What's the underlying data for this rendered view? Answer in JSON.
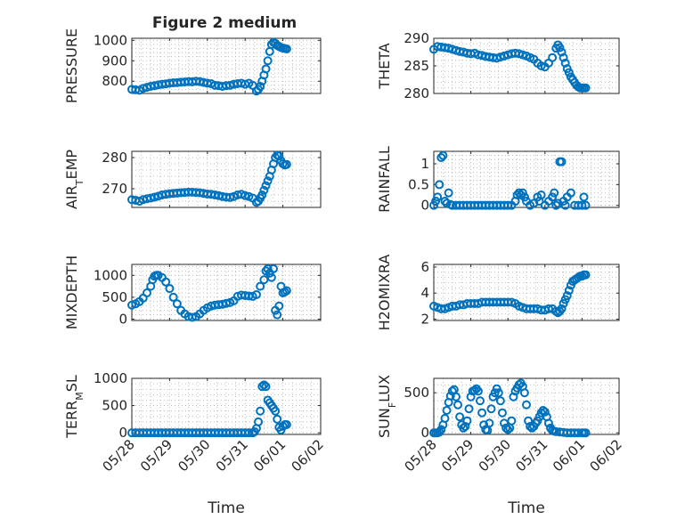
{
  "figure": {
    "title": "Figure 2 medium"
  },
  "colors": {
    "marker": "#0072BD",
    "axis": "#262626",
    "grid": "#b0b0b0"
  },
  "x_axis": {
    "xlabel": "Time",
    "ticks": [
      "05/28",
      "05/29",
      "05/30",
      "05/31",
      "06/01",
      "06/02"
    ],
    "xlim": [
      0,
      5
    ]
  },
  "chart_data": [
    {
      "type": "scatter",
      "ylabel": "PRESSURE",
      "ylim": [
        740,
        1010
      ],
      "yticks": [
        800,
        900,
        1000
      ],
      "ytick_labels": [
        "800",
        "900",
        "1000"
      ],
      "show_xticklabels": false,
      "x": [
        0.0,
        0.1,
        0.2,
        0.3,
        0.4,
        0.5,
        0.6,
        0.7,
        0.8,
        0.9,
        1.0,
        1.1,
        1.2,
        1.3,
        1.4,
        1.5,
        1.6,
        1.7,
        1.8,
        1.9,
        2.0,
        2.1,
        2.2,
        2.3,
        2.4,
        2.5,
        2.6,
        2.7,
        2.8,
        2.9,
        3.0,
        3.1,
        3.2,
        3.3,
        3.35,
        3.4,
        3.45,
        3.5,
        3.55,
        3.6,
        3.65,
        3.7,
        3.75,
        3.8,
        3.85,
        3.9,
        3.95,
        4.0,
        4.05,
        4.1
      ],
      "y": [
        760,
        758,
        756,
        765,
        770,
        775,
        778,
        782,
        785,
        787,
        790,
        792,
        793,
        795,
        796,
        798,
        797,
        800,
        798,
        794,
        790,
        788,
        780,
        778,
        775,
        778,
        780,
        785,
        788,
        790,
        785,
        790,
        780,
        752,
        760,
        775,
        800,
        830,
        860,
        900,
        945,
        980,
        990,
        985,
        975,
        970,
        965,
        962,
        960,
        958
      ]
    },
    {
      "type": "scatter",
      "ylabel": "THETA",
      "ylim": [
        280,
        290
      ],
      "yticks": [
        280,
        285,
        290
      ],
      "ytick_labels": [
        "280",
        "285",
        "290"
      ],
      "show_xticklabels": false,
      "x": [
        0.0,
        0.1,
        0.2,
        0.3,
        0.4,
        0.5,
        0.6,
        0.7,
        0.8,
        0.9,
        1.0,
        1.1,
        1.2,
        1.3,
        1.4,
        1.5,
        1.6,
        1.7,
        1.8,
        1.9,
        2.0,
        2.1,
        2.2,
        2.3,
        2.4,
        2.5,
        2.6,
        2.7,
        2.8,
        2.9,
        3.0,
        3.1,
        3.2,
        3.3,
        3.35,
        3.4,
        3.45,
        3.5,
        3.55,
        3.6,
        3.65,
        3.7,
        3.75,
        3.8,
        3.85,
        3.9,
        3.95,
        4.0,
        4.05,
        4.1
      ],
      "y": [
        288.0,
        288.5,
        288.4,
        288.3,
        288.2,
        288.0,
        287.8,
        287.6,
        287.5,
        287.3,
        287.2,
        287.3,
        287.0,
        286.9,
        286.7,
        286.6,
        286.5,
        286.4,
        286.6,
        286.8,
        287.0,
        287.2,
        287.3,
        287.2,
        287.0,
        286.8,
        286.5,
        286.2,
        285.5,
        285.0,
        284.8,
        285.5,
        286.5,
        288.2,
        288.8,
        288.3,
        287.5,
        286.5,
        285.5,
        284.5,
        283.8,
        283.0,
        282.5,
        282.0,
        281.5,
        281.2,
        281.0,
        281.0,
        281.0,
        281.0
      ]
    },
    {
      "type": "scatter",
      "ylabel": "AIR_TEMP",
      "ylim": [
        264,
        282
      ],
      "yticks": [
        270,
        280
      ],
      "ytick_labels": [
        "270",
        "280"
      ],
      "show_xticklabels": false,
      "x": [
        0.0,
        0.1,
        0.2,
        0.3,
        0.4,
        0.5,
        0.6,
        0.7,
        0.8,
        0.9,
        1.0,
        1.1,
        1.2,
        1.3,
        1.4,
        1.5,
        1.6,
        1.7,
        1.8,
        1.9,
        2.0,
        2.1,
        2.2,
        2.3,
        2.4,
        2.5,
        2.6,
        2.7,
        2.8,
        2.9,
        3.0,
        3.1,
        3.2,
        3.3,
        3.35,
        3.4,
        3.45,
        3.5,
        3.55,
        3.6,
        3.65,
        3.7,
        3.75,
        3.8,
        3.85,
        3.9,
        3.95,
        4.0,
        4.05,
        4.1
      ],
      "y": [
        266.5,
        266.3,
        266.0,
        266.5,
        266.8,
        267.0,
        267.3,
        267.6,
        268.0,
        268.2,
        268.4,
        268.5,
        268.6,
        268.7,
        268.8,
        268.9,
        268.9,
        268.8,
        268.7,
        268.5,
        268.3,
        268.2,
        268.0,
        267.8,
        267.5,
        267.3,
        267.2,
        267.5,
        268.0,
        268.2,
        267.8,
        267.5,
        267.0,
        265.6,
        266.0,
        267.0,
        268.0,
        269.5,
        271.0,
        272.5,
        274.0,
        276.0,
        278.0,
        280.0,
        280.8,
        280.5,
        279.0,
        278.0,
        277.6,
        277.8
      ]
    },
    {
      "type": "scatter",
      "ylabel": "RAINFALL",
      "ylim": [
        -0.05,
        1.3
      ],
      "yticks": [
        0,
        0.5,
        1
      ],
      "ytick_labels": [
        "0",
        "0.5",
        "1"
      ],
      "show_xticklabels": false,
      "x": [
        0.0,
        0.05,
        0.1,
        0.15,
        0.2,
        0.25,
        0.3,
        0.35,
        0.4,
        0.45,
        0.5,
        0.6,
        0.7,
        0.8,
        0.9,
        1.0,
        1.1,
        1.2,
        1.3,
        1.4,
        1.5,
        1.6,
        1.7,
        1.8,
        1.9,
        2.0,
        2.1,
        2.2,
        2.25,
        2.3,
        2.35,
        2.4,
        2.45,
        2.5,
        2.6,
        2.7,
        2.8,
        2.85,
        2.9,
        3.0,
        3.1,
        3.2,
        3.25,
        3.3,
        3.35,
        3.4,
        3.45,
        3.5,
        3.55,
        3.6,
        3.7,
        3.8,
        3.9,
        4.0,
        4.05,
        4.1
      ],
      "y": [
        0,
        0.1,
        0.2,
        0.5,
        1.15,
        1.2,
        0.1,
        0.05,
        0.3,
        0.02,
        0,
        0,
        0,
        0,
        0,
        0,
        0,
        0,
        0,
        0,
        0,
        0,
        0,
        0,
        0,
        0,
        0,
        0.1,
        0.25,
        0.3,
        0.25,
        0.3,
        0.2,
        0.1,
        0,
        0.05,
        0.2,
        0.1,
        0.25,
        0,
        0.1,
        0.2,
        0.3,
        0,
        0.05,
        1.05,
        1.05,
        0.1,
        0,
        0.2,
        0.3,
        0,
        0,
        0,
        0.2,
        0
      ]
    },
    {
      "type": "scatter",
      "ylabel": "MIXDEPTH",
      "ylim": [
        -30,
        1250
      ],
      "yticks": [
        0,
        500,
        1000
      ],
      "ytick_labels": [
        "0",
        "500",
        "1000"
      ],
      "show_xticklabels": false,
      "x": [
        0.0,
        0.1,
        0.2,
        0.3,
        0.4,
        0.5,
        0.55,
        0.6,
        0.65,
        0.7,
        0.8,
        0.9,
        1.0,
        1.1,
        1.2,
        1.3,
        1.4,
        1.5,
        1.6,
        1.7,
        1.8,
        1.9,
        2.0,
        2.1,
        2.2,
        2.3,
        2.4,
        2.5,
        2.6,
        2.7,
        2.8,
        2.9,
        3.0,
        3.1,
        3.2,
        3.3,
        3.4,
        3.5,
        3.55,
        3.6,
        3.65,
        3.7,
        3.75,
        3.8,
        3.85,
        3.9,
        3.95,
        4.0,
        4.05,
        4.1
      ],
      "y": [
        320,
        350,
        400,
        480,
        600,
        750,
        900,
        980,
        1000,
        1000,
        950,
        850,
        700,
        500,
        350,
        200,
        120,
        60,
        40,
        60,
        120,
        200,
        260,
        300,
        320,
        330,
        340,
        360,
        380,
        420,
        520,
        550,
        540,
        530,
        520,
        560,
        750,
        900,
        1100,
        1150,
        1050,
        950,
        1150,
        200,
        100,
        300,
        750,
        600,
        620,
        650
      ]
    },
    {
      "type": "scatter",
      "ylabel": "H2OMIXRA",
      "ylim": [
        1.9,
        6.2
      ],
      "yticks": [
        2,
        4,
        6
      ],
      "ytick_labels": [
        "2",
        "4",
        "6"
      ],
      "show_xticklabels": false,
      "x": [
        0.0,
        0.1,
        0.2,
        0.3,
        0.4,
        0.5,
        0.6,
        0.7,
        0.8,
        0.9,
        1.0,
        1.1,
        1.2,
        1.3,
        1.4,
        1.5,
        1.6,
        1.7,
        1.8,
        1.9,
        2.0,
        2.1,
        2.2,
        2.3,
        2.4,
        2.5,
        2.6,
        2.7,
        2.8,
        2.9,
        3.0,
        3.1,
        3.2,
        3.3,
        3.35,
        3.4,
        3.45,
        3.5,
        3.55,
        3.6,
        3.65,
        3.7,
        3.75,
        3.8,
        3.85,
        3.9,
        3.95,
        4.0,
        4.05,
        4.1
      ],
      "y": [
        3.0,
        2.9,
        2.8,
        2.8,
        2.9,
        3.0,
        3.0,
        3.1,
        3.1,
        3.2,
        3.2,
        3.2,
        3.2,
        3.3,
        3.3,
        3.3,
        3.3,
        3.3,
        3.3,
        3.3,
        3.3,
        3.3,
        3.2,
        3.0,
        2.9,
        2.8,
        2.8,
        2.8,
        2.8,
        2.7,
        2.7,
        2.8,
        2.8,
        2.6,
        2.5,
        2.6,
        2.8,
        3.2,
        3.5,
        3.8,
        4.2,
        4.6,
        4.9,
        5.0,
        5.1,
        5.2,
        5.3,
        5.3,
        5.4,
        5.4
      ]
    },
    {
      "type": "scatter",
      "ylabel": "TERR_MSL",
      "ylim": [
        -30,
        1000
      ],
      "yticks": [
        0,
        500,
        1000
      ],
      "ytick_labels": [
        "0",
        "500",
        "1000"
      ],
      "show_xticklabels": true,
      "x": [
        0.0,
        0.1,
        0.2,
        0.3,
        0.4,
        0.5,
        0.6,
        0.7,
        0.8,
        0.9,
        1.0,
        1.1,
        1.2,
        1.3,
        1.4,
        1.5,
        1.6,
        1.7,
        1.8,
        1.9,
        2.0,
        2.1,
        2.2,
        2.3,
        2.4,
        2.5,
        2.6,
        2.7,
        2.8,
        2.9,
        3.0,
        3.1,
        3.2,
        3.25,
        3.3,
        3.35,
        3.4,
        3.45,
        3.5,
        3.55,
        3.6,
        3.65,
        3.7,
        3.75,
        3.8,
        3.85,
        3.9,
        3.95,
        4.0,
        4.05,
        4.1
      ],
      "y": [
        0,
        0,
        0,
        0,
        0,
        0,
        0,
        0,
        0,
        0,
        0,
        0,
        0,
        0,
        0,
        0,
        0,
        0,
        0,
        0,
        0,
        0,
        0,
        0,
        0,
        0,
        0,
        0,
        0,
        0,
        0,
        0,
        0,
        20,
        80,
        200,
        400,
        850,
        880,
        850,
        600,
        550,
        500,
        450,
        400,
        250,
        100,
        50,
        120,
        150,
        150
      ]
    },
    {
      "type": "scatter",
      "ylabel": "SUN_FLUX",
      "ylim": [
        -20,
        680
      ],
      "yticks": [
        0,
        500
      ],
      "ytick_labels": [
        "0",
        "500"
      ],
      "show_xticklabels": true,
      "x": [
        0.0,
        0.05,
        0.1,
        0.15,
        0.2,
        0.25,
        0.3,
        0.35,
        0.4,
        0.45,
        0.5,
        0.55,
        0.6,
        0.65,
        0.7,
        0.75,
        0.8,
        0.85,
        0.9,
        0.95,
        1.0,
        1.05,
        1.1,
        1.15,
        1.2,
        1.25,
        1.3,
        1.35,
        1.4,
        1.45,
        1.5,
        1.55,
        1.6,
        1.65,
        1.7,
        1.75,
        1.8,
        1.85,
        1.9,
        1.95,
        2.0,
        2.05,
        2.1,
        2.15,
        2.2,
        2.25,
        2.3,
        2.35,
        2.4,
        2.45,
        2.5,
        2.55,
        2.6,
        2.65,
        2.7,
        2.75,
        2.8,
        2.85,
        2.9,
        2.95,
        3.0,
        3.05,
        3.1,
        3.15,
        3.2,
        3.25,
        3.3,
        3.4,
        3.5,
        3.6,
        3.7,
        3.8,
        3.9,
        4.0,
        4.05,
        4.1
      ],
      "y": [
        0,
        0,
        0,
        10,
        40,
        100,
        180,
        280,
        380,
        460,
        520,
        540,
        450,
        350,
        200,
        100,
        60,
        80,
        150,
        300,
        450,
        520,
        530,
        550,
        520,
        400,
        250,
        100,
        40,
        30,
        120,
        300,
        450,
        500,
        550,
        500,
        400,
        250,
        120,
        60,
        40,
        60,
        150,
        450,
        520,
        560,
        600,
        620,
        580,
        500,
        350,
        150,
        80,
        60,
        80,
        120,
        150,
        200,
        250,
        280,
        260,
        200,
        120,
        60,
        30,
        20,
        15,
        10,
        5,
        0,
        0,
        0,
        0,
        0,
        0,
        0
      ]
    }
  ]
}
